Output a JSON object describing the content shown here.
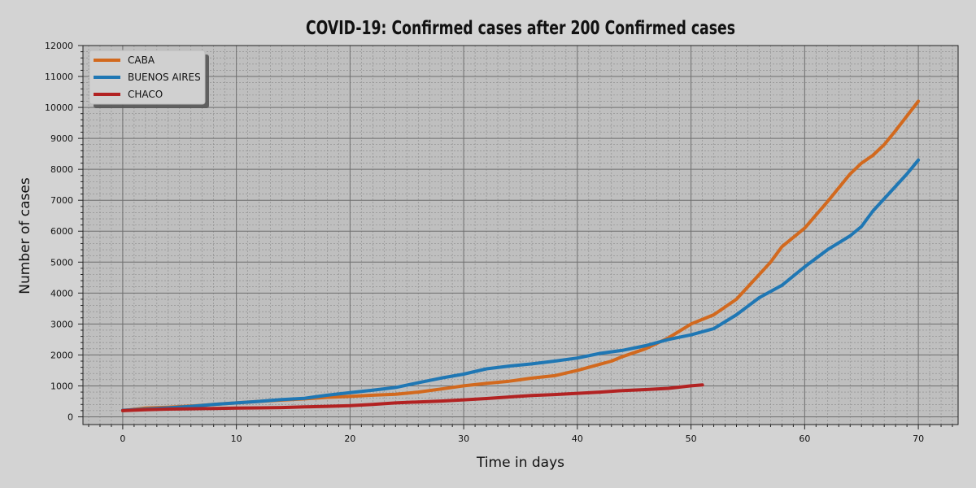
{
  "chart_data": {
    "type": "line",
    "title": "COVID-19: Confirmed cases after 200 Confirmed cases",
    "xlabel": "Time in days",
    "ylabel": "Number of cases",
    "xlim": [
      -3.5,
      73.5
    ],
    "ylim": [
      -250,
      12000
    ],
    "xticks": [
      0,
      10,
      20,
      30,
      40,
      50,
      60,
      70
    ],
    "yticks": [
      0,
      1000,
      2000,
      3000,
      4000,
      5000,
      6000,
      7000,
      8000,
      9000,
      10000,
      11000,
      12000
    ],
    "grid": true,
    "legend_position": "top-left",
    "series": [
      {
        "name": "CABA",
        "color": "#d2691e",
        "x": [
          0,
          2,
          4,
          6,
          8,
          10,
          12,
          14,
          16,
          18,
          20,
          22,
          24,
          26,
          28,
          30,
          32,
          34,
          36,
          38,
          40,
          42,
          43,
          44,
          46,
          48,
          50,
          52,
          54,
          56,
          57,
          58,
          60,
          62,
          64,
          65,
          66,
          67,
          68,
          70
        ],
        "y": [
          200,
          280,
          310,
          350,
          400,
          450,
          500,
          540,
          580,
          630,
          660,
          700,
          730,
          800,
          900,
          1000,
          1080,
          1150,
          1250,
          1330,
          1500,
          1700,
          1800,
          1950,
          2200,
          2550,
          3000,
          3300,
          3800,
          4600,
          5000,
          5500,
          6100,
          6950,
          7850,
          8200,
          8450,
          8800,
          9250,
          10200
        ]
      },
      {
        "name": "BUENOS AIRES",
        "color": "#1f77b4",
        "x": [
          0,
          2,
          4,
          6,
          8,
          10,
          12,
          14,
          16,
          18,
          20,
          22,
          24,
          26,
          28,
          30,
          32,
          34,
          36,
          38,
          40,
          42,
          44,
          46,
          48,
          50,
          52,
          54,
          56,
          58,
          60,
          62,
          64,
          65,
          66,
          68,
          69,
          70
        ],
        "y": [
          210,
          250,
          290,
          340,
          400,
          450,
          500,
          560,
          600,
          700,
          780,
          860,
          950,
          1100,
          1250,
          1380,
          1550,
          1640,
          1710,
          1800,
          1900,
          2050,
          2150,
          2300,
          2500,
          2650,
          2850,
          3300,
          3850,
          4250,
          4850,
          5400,
          5850,
          6150,
          6650,
          7450,
          7850,
          8300
        ]
      },
      {
        "name": "CHACO",
        "color": "#b22222",
        "x": [
          0,
          2,
          4,
          6,
          8,
          10,
          12,
          14,
          16,
          18,
          20,
          22,
          24,
          26,
          28,
          30,
          32,
          34,
          36,
          38,
          40,
          42,
          44,
          46,
          48,
          50,
          51
        ],
        "y": [
          200,
          230,
          250,
          260,
          270,
          280,
          290,
          300,
          320,
          340,
          360,
          400,
          450,
          480,
          510,
          550,
          590,
          640,
          690,
          720,
          760,
          800,
          850,
          880,
          920,
          1000,
          1030
        ]
      }
    ]
  }
}
